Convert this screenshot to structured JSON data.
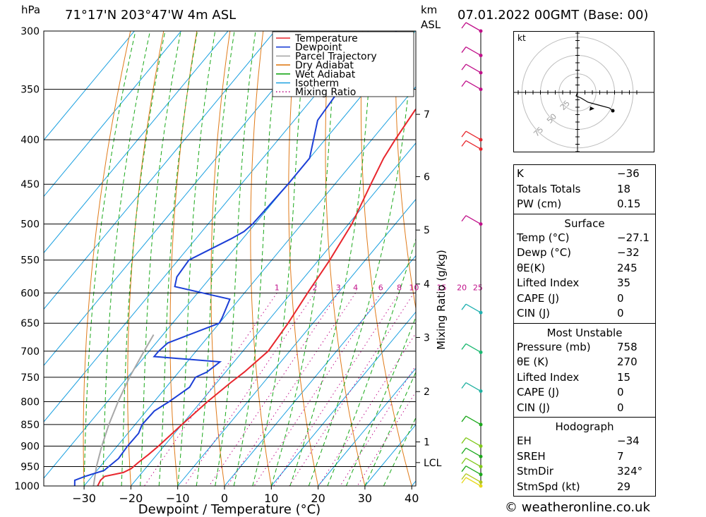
{
  "header": {
    "location": "71°17'N  203°47'W  4m  ASL",
    "datetime": "07.01.2022  00GMT  (Base: 00)",
    "hpa_label": "hPa",
    "km_label": "km",
    "asl_label": "ASL"
  },
  "chart_data": {
    "type": "skew-t",
    "xlabel": "Dewpoint / Temperature (°C)",
    "ylabel": "",
    "right_label": "Mixing Ratio (g/kg)",
    "xlim": [
      -40,
      40
    ],
    "pressure_range": [
      300,
      1000
    ],
    "pressure_ticks": [
      300,
      350,
      400,
      450,
      500,
      550,
      600,
      650,
      700,
      750,
      800,
      850,
      900,
      950,
      1000
    ],
    "temp_ticks": [
      -30,
      -20,
      -10,
      0,
      10,
      20,
      30,
      40
    ],
    "km_ticks": [
      {
        "label": "7",
        "p": 374
      },
      {
        "label": "6",
        "p": 441
      },
      {
        "label": "5",
        "p": 508
      },
      {
        "label": "4",
        "p": 586
      },
      {
        "label": "3",
        "p": 675
      },
      {
        "label": "2",
        "p": 779
      },
      {
        "label": "1",
        "p": 890
      },
      {
        "label": "LCL",
        "p": 940
      }
    ],
    "mixing_ratio_labels": [
      "1",
      "2",
      "3",
      "4",
      "6",
      "8",
      "10",
      "15",
      "20",
      "25"
    ],
    "mixing_ratio_values": [
      1,
      2,
      3,
      4,
      6,
      8,
      10,
      15,
      20,
      25
    ],
    "legend": [
      "Temperature",
      "Dewpoint",
      "Parcel Trajectory",
      "Dry Adiabat",
      "Wet Adiabat",
      "Isotherm",
      "Mixing Ratio"
    ],
    "colors": {
      "temperature": "#e8262d",
      "dewpoint": "#1c3fd6",
      "parcel": "#a8a8a8",
      "dry_adiabat": "#e07b1a",
      "wet_adiabat": "#1aa81a",
      "isotherm": "#1aa0e0",
      "mixing_ratio": "#c0108a"
    },
    "temperature": [
      [
        1000,
        -27.1
      ],
      [
        985,
        -27.5
      ],
      [
        975,
        -27.3
      ],
      [
        965,
        -24
      ],
      [
        955,
        -23
      ],
      [
        940,
        -22.6
      ],
      [
        920,
        -21.8
      ],
      [
        900,
        -21.2
      ],
      [
        850,
        -20
      ],
      [
        800,
        -18.6
      ],
      [
        760,
        -17
      ],
      [
        740,
        -16
      ],
      [
        700,
        -14.6
      ],
      [
        650,
        -15.3
      ],
      [
        600,
        -16.5
      ],
      [
        550,
        -17.6
      ],
      [
        500,
        -19.3
      ],
      [
        450,
        -22.3
      ],
      [
        420,
        -24.2
      ],
      [
        400,
        -25
      ],
      [
        370,
        -26
      ],
      [
        350,
        -25.8
      ],
      [
        330,
        -23.6
      ],
      [
        300,
        -23.6
      ]
    ],
    "dewpoint": [
      [
        1000,
        -32
      ],
      [
        985,
        -33
      ],
      [
        975,
        -31.5
      ],
      [
        960,
        -28.5
      ],
      [
        930,
        -27.5
      ],
      [
        900,
        -27.8
      ],
      [
        870,
        -27.7
      ],
      [
        850,
        -28.5
      ],
      [
        820,
        -28.3
      ],
      [
        800,
        -26.8
      ],
      [
        770,
        -25
      ],
      [
        750,
        -25.5
      ],
      [
        740,
        -24
      ],
      [
        720,
        -23
      ],
      [
        710,
        -38
      ],
      [
        700,
        -38
      ],
      [
        685,
        -37.5
      ],
      [
        650,
        -30
      ],
      [
        640,
        -30.4
      ],
      [
        610,
        -32
      ],
      [
        590,
        -46
      ],
      [
        575,
        -47.3
      ],
      [
        550,
        -47.7
      ],
      [
        520,
        -42.5
      ],
      [
        510,
        -41
      ],
      [
        500,
        -40.5
      ],
      [
        450,
        -40
      ],
      [
        420,
        -40
      ],
      [
        380,
        -45
      ],
      [
        360,
        -45.5
      ],
      [
        330,
        -46.5
      ],
      [
        320,
        -45
      ],
      [
        300,
        -44
      ]
    ],
    "parcel": [
      [
        1000,
        -28
      ],
      [
        950,
        -30.8
      ],
      [
        900,
        -33.3
      ],
      [
        850,
        -35.6
      ],
      [
        800,
        -37.7
      ],
      [
        750,
        -39.6
      ],
      [
        700,
        -41.1
      ],
      [
        670,
        -42
      ]
    ],
    "wind_barbs": [
      {
        "p": 300,
        "color": "#c0108a"
      },
      {
        "p": 320,
        "color": "#c0108a"
      },
      {
        "p": 335,
        "color": "#c0108a"
      },
      {
        "p": 350,
        "color": "#c0108a"
      },
      {
        "p": 400,
        "color": "#e8262d"
      },
      {
        "p": 410,
        "color": "#e8262d"
      },
      {
        "p": 500,
        "color": "#c0108a"
      },
      {
        "p": 632,
        "color": "#20b0b0"
      },
      {
        "p": 702,
        "color": "#1ab870"
      },
      {
        "p": 778,
        "color": "#20b0a0"
      },
      {
        "p": 850,
        "color": "#1aa81a"
      },
      {
        "p": 900,
        "color": "#80c81a"
      },
      {
        "p": 925,
        "color": "#1aa81a"
      },
      {
        "p": 950,
        "color": "#80c81a"
      },
      {
        "p": 970,
        "color": "#1aa81a"
      },
      {
        "p": 990,
        "color": "#b0c81a"
      },
      {
        "p": 1000,
        "color": "#e8d81a"
      }
    ],
    "hodograph": {
      "unit_label": "kt",
      "ring_labels": [
        "25",
        "50",
        "75"
      ],
      "path": [
        [
          0,
          0
        ],
        [
          -2,
          -5
        ],
        [
          5,
          -8
        ],
        [
          15,
          -14
        ],
        [
          30,
          -18
        ],
        [
          45,
          -22
        ],
        [
          50,
          -26
        ]
      ]
    }
  },
  "indices": {
    "basic": [
      {
        "label": "K",
        "value": "-36"
      },
      {
        "label": "Totals Totals",
        "value": "18"
      },
      {
        "label": "PW (cm)",
        "value": "0.15"
      }
    ],
    "surface_title": "Surface",
    "surface": [
      {
        "label": "Temp (°C)",
        "value": "-27.1"
      },
      {
        "label": "Dewp (°C)",
        "value": "-32"
      },
      {
        "label": "θE(K)",
        "value": "245"
      },
      {
        "label": "Lifted Index",
        "value": "35"
      },
      {
        "label": "CAPE (J)",
        "value": "0"
      },
      {
        "label": "CIN (J)",
        "value": "0"
      }
    ],
    "mu_title": "Most Unstable",
    "most_unstable": [
      {
        "label": "Pressure (mb)",
        "value": "758"
      },
      {
        "label": "θE (K)",
        "value": "270"
      },
      {
        "label": "Lifted Index",
        "value": "15"
      },
      {
        "label": "CAPE (J)",
        "value": "0"
      },
      {
        "label": "CIN (J)",
        "value": "0"
      }
    ],
    "hodo_title": "Hodograph",
    "hodograph": [
      {
        "label": "EH",
        "value": "-34"
      },
      {
        "label": "SREH",
        "value": "7"
      },
      {
        "label": "StmDir",
        "value": "324°"
      },
      {
        "label": "StmSpd (kt)",
        "value": "29"
      }
    ]
  },
  "credit": "© weatheronline.co.uk"
}
